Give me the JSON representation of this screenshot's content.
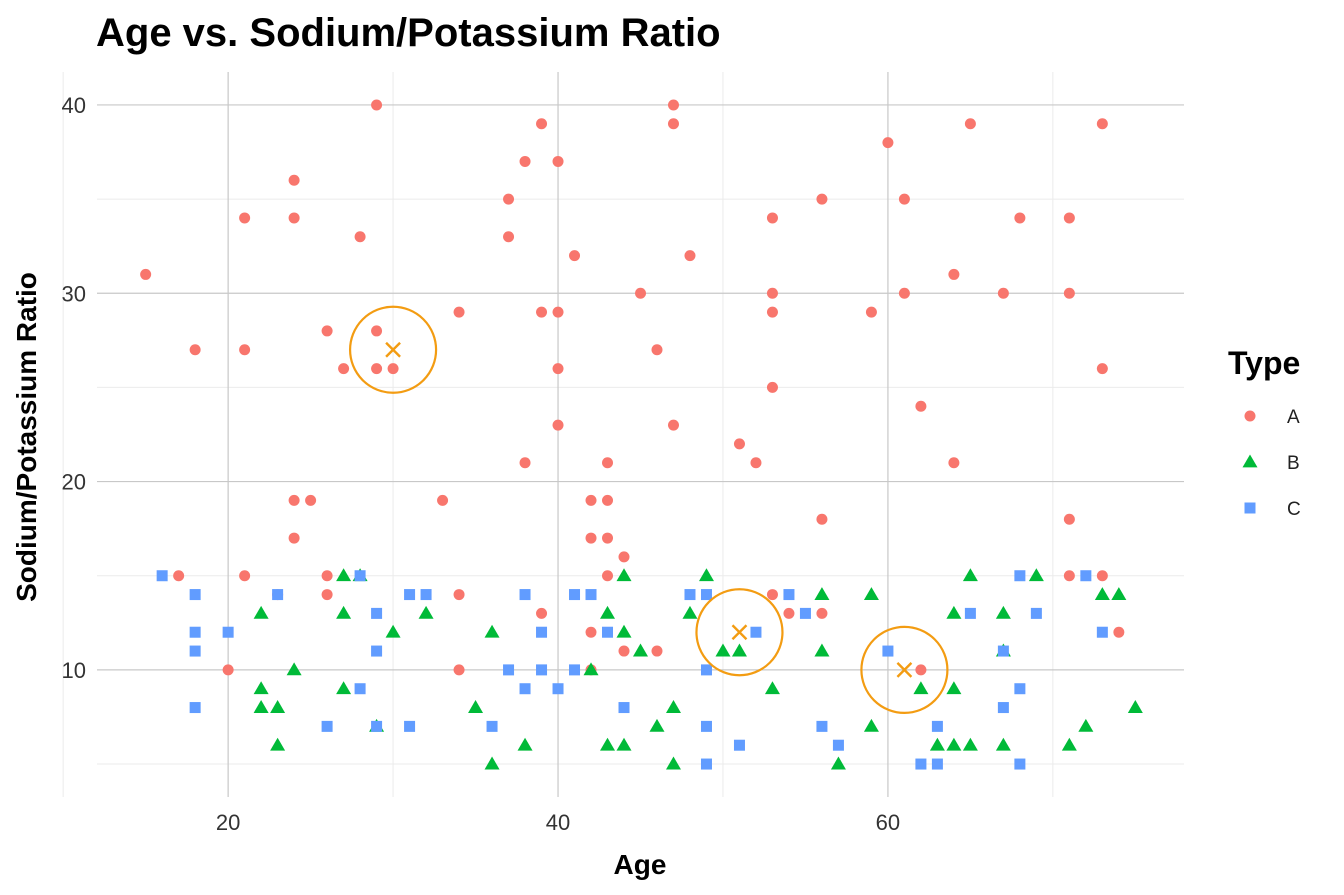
{
  "chart_data": {
    "type": "scatter",
    "title": "Age vs. Sodium/Potassium Ratio",
    "xlabel": "Age",
    "ylabel": "Sodium/Potassium Ratio",
    "xlim": [
      12.05,
      77.95
    ],
    "ylim": [
      3.25,
      41.75
    ],
    "x_ticks": [
      20,
      40,
      60
    ],
    "y_ticks": [
      10,
      20,
      30,
      40
    ],
    "grid": true,
    "legend": {
      "title": "Type",
      "position": "right",
      "entries": [
        {
          "label": "A",
          "shape": "circle",
          "color": "#F8766D"
        },
        {
          "label": "B",
          "shape": "triangle",
          "color": "#00BA38"
        },
        {
          "label": "C",
          "shape": "square",
          "color": "#619CFF"
        }
      ]
    },
    "series": [
      {
        "name": "A",
        "color": "#F8766D",
        "shape": "circle",
        "points": [
          [
            15,
            31
          ],
          [
            17,
            15
          ],
          [
            18,
            27
          ],
          [
            20,
            10
          ],
          [
            21,
            34
          ],
          [
            21,
            27
          ],
          [
            21,
            15
          ],
          [
            23,
            14
          ],
          [
            24,
            36
          ],
          [
            24,
            34
          ],
          [
            24,
            19
          ],
          [
            24,
            17
          ],
          [
            25,
            19
          ],
          [
            26,
            28
          ],
          [
            26,
            15
          ],
          [
            26,
            14
          ],
          [
            27,
            26
          ],
          [
            28,
            33
          ],
          [
            29,
            40
          ],
          [
            29,
            28
          ],
          [
            29,
            26
          ],
          [
            30,
            26
          ],
          [
            33,
            19
          ],
          [
            34,
            29
          ],
          [
            34,
            14
          ],
          [
            34,
            10
          ],
          [
            37,
            35
          ],
          [
            37,
            33
          ],
          [
            38,
            37
          ],
          [
            38,
            21
          ],
          [
            39,
            39
          ],
          [
            39,
            29
          ],
          [
            39,
            13
          ],
          [
            40,
            37
          ],
          [
            40,
            29
          ],
          [
            40,
            26
          ],
          [
            40,
            23
          ],
          [
            41,
            32
          ],
          [
            42,
            19
          ],
          [
            42,
            17
          ],
          [
            42,
            12
          ],
          [
            42,
            10
          ],
          [
            43,
            21
          ],
          [
            43,
            19
          ],
          [
            43,
            17
          ],
          [
            43,
            15
          ],
          [
            44,
            16
          ],
          [
            44,
            11
          ],
          [
            45,
            30
          ],
          [
            46,
            27
          ],
          [
            46,
            11
          ],
          [
            47,
            40
          ],
          [
            47,
            39
          ],
          [
            47,
            23
          ],
          [
            48,
            32
          ],
          [
            51,
            22
          ],
          [
            52,
            21
          ],
          [
            53,
            34
          ],
          [
            53,
            30
          ],
          [
            53,
            29
          ],
          [
            53,
            25
          ],
          [
            53,
            14
          ],
          [
            54,
            13
          ],
          [
            56,
            35
          ],
          [
            56,
            18
          ],
          [
            56,
            13
          ],
          [
            59,
            29
          ],
          [
            60,
            38
          ],
          [
            61,
            35
          ],
          [
            61,
            30
          ],
          [
            62,
            24
          ],
          [
            62,
            10
          ],
          [
            64,
            31
          ],
          [
            64,
            21
          ],
          [
            65,
            39
          ],
          [
            67,
            30
          ],
          [
            68,
            34
          ],
          [
            71,
            34
          ],
          [
            71,
            30
          ],
          [
            71,
            18
          ],
          [
            71,
            15
          ],
          [
            73,
            39
          ],
          [
            73,
            26
          ],
          [
            73,
            15
          ],
          [
            74,
            12
          ]
        ]
      },
      {
        "name": "B",
        "color": "#00BA38",
        "shape": "triangle",
        "points": [
          [
            22,
            13
          ],
          [
            22,
            9
          ],
          [
            22,
            8
          ],
          [
            23,
            8
          ],
          [
            23,
            6
          ],
          [
            24,
            10
          ],
          [
            27,
            15
          ],
          [
            27,
            13
          ],
          [
            27,
            9
          ],
          [
            28,
            15
          ],
          [
            29,
            7
          ],
          [
            30,
            12
          ],
          [
            32,
            13
          ],
          [
            35,
            8
          ],
          [
            36,
            12
          ],
          [
            36,
            5
          ],
          [
            38,
            6
          ],
          [
            42,
            10
          ],
          [
            43,
            13
          ],
          [
            43,
            6
          ],
          [
            44,
            15
          ],
          [
            44,
            12
          ],
          [
            44,
            6
          ],
          [
            45,
            11
          ],
          [
            46,
            7
          ],
          [
            47,
            8
          ],
          [
            47,
            5
          ],
          [
            48,
            13
          ],
          [
            49,
            15
          ],
          [
            50,
            11
          ],
          [
            51,
            11
          ],
          [
            53,
            9
          ],
          [
            56,
            14
          ],
          [
            56,
            11
          ],
          [
            57,
            5
          ],
          [
            59,
            14
          ],
          [
            59,
            7
          ],
          [
            62,
            9
          ],
          [
            63,
            6
          ],
          [
            64,
            13
          ],
          [
            64,
            9
          ],
          [
            64,
            6
          ],
          [
            65,
            15
          ],
          [
            65,
            6
          ],
          [
            67,
            13
          ],
          [
            67,
            11
          ],
          [
            67,
            6
          ],
          [
            69,
            15
          ],
          [
            71,
            6
          ],
          [
            72,
            7
          ],
          [
            73,
            14
          ],
          [
            74,
            14
          ],
          [
            75,
            8
          ]
        ]
      },
      {
        "name": "C",
        "color": "#619CFF",
        "shape": "square",
        "points": [
          [
            16,
            15
          ],
          [
            18,
            14
          ],
          [
            18,
            12
          ],
          [
            18,
            11
          ],
          [
            18,
            8
          ],
          [
            20,
            12
          ],
          [
            23,
            14
          ],
          [
            26,
            7
          ],
          [
            28,
            15
          ],
          [
            28,
            9
          ],
          [
            29,
            13
          ],
          [
            29,
            11
          ],
          [
            29,
            7
          ],
          [
            31,
            14
          ],
          [
            31,
            7
          ],
          [
            32,
            14
          ],
          [
            36,
            7
          ],
          [
            37,
            10
          ],
          [
            38,
            14
          ],
          [
            38,
            9
          ],
          [
            39,
            12
          ],
          [
            39,
            10
          ],
          [
            40,
            9
          ],
          [
            41,
            14
          ],
          [
            41,
            10
          ],
          [
            42,
            14
          ],
          [
            43,
            12
          ],
          [
            44,
            8
          ],
          [
            48,
            14
          ],
          [
            49,
            14
          ],
          [
            49,
            10
          ],
          [
            49,
            7
          ],
          [
            49,
            5
          ],
          [
            51,
            6
          ],
          [
            52,
            12
          ],
          [
            54,
            14
          ],
          [
            55,
            13
          ],
          [
            56,
            7
          ],
          [
            57,
            6
          ],
          [
            60,
            11
          ],
          [
            62,
            5
          ],
          [
            63,
            7
          ],
          [
            63,
            5
          ],
          [
            65,
            13
          ],
          [
            67,
            11
          ],
          [
            67,
            8
          ],
          [
            68,
            15
          ],
          [
            68,
            9
          ],
          [
            68,
            5
          ],
          [
            69,
            13
          ],
          [
            72,
            15
          ],
          [
            73,
            12
          ]
        ]
      }
    ],
    "highlights": [
      {
        "x": 30,
        "y": 27,
        "color": "#F39C12"
      },
      {
        "x": 51,
        "y": 12,
        "color": "#F39C12"
      },
      {
        "x": 61,
        "y": 10,
        "color": "#F39C12"
      }
    ]
  }
}
